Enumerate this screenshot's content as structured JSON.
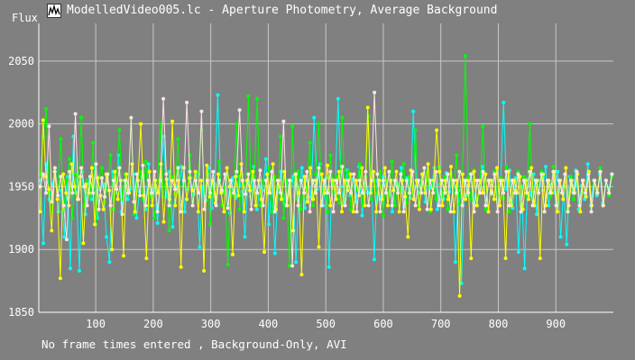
{
  "window": {
    "title": "ModelledVideo005.lc - Aperture Photometry, Average Background",
    "icon": "lightcurve-app-icon"
  },
  "status": {
    "text": "No frame times entered , Background-Only, AVI"
  },
  "chart_data": {
    "type": "line",
    "title": "ModelledVideo005.lc - Aperture Photometry, Average Background",
    "ylabel": "Flux",
    "xlabel": "",
    "xlim": [
      1,
      1000
    ],
    "ylim": [
      1850,
      2080
    ],
    "xticks": [
      100,
      200,
      300,
      400,
      500,
      600,
      700,
      800,
      900
    ],
    "yticks": [
      1850,
      1900,
      1950,
      2000,
      2050
    ],
    "grid": true,
    "legend": "none",
    "markers": "dots",
    "background": "#808080",
    "gridColor": "#c8c8c8",
    "series": [
      {
        "color": "#00ffff",
        "values": [
          1955,
          1905,
          1968,
          1940,
          1952,
          1962,
          1930,
          1947,
          1910,
          1958,
          1885,
          1990,
          1945,
          1883,
          1962,
          1928,
          1955,
          1940,
          1965,
          1925,
          1948,
          1952,
          1910,
          1890,
          1962,
          1945,
          1975,
          1930,
          1955,
          1940,
          1948,
          1960,
          1925,
          1946,
          1958,
          1932,
          1968,
          1944,
          1950,
          1921,
          1955,
          1990,
          1942,
          1962,
          1918,
          1950,
          1946,
          1966,
          1930,
          1948,
          1957,
          1944,
          1961,
          1902,
          1950,
          1939,
          1965,
          1933,
          1952,
          2023,
          1947,
          1945,
          1960,
          1929,
          1957,
          1941,
          1958,
          1946,
          1910,
          1954,
          1942,
          1966,
          1932,
          1950,
          1947,
          1972,
          1920,
          1955,
          1897,
          1946,
          1962,
          1937,
          1955,
          1943,
          1958,
          1890,
          1950,
          1965,
          1933,
          1955,
          1942,
          2005,
          1948,
          1968,
          1935,
          1957,
          1886,
          1956,
          1944,
          2020,
          1950,
          1935,
          1963,
          1943,
          1956,
          1938,
          1966,
          1927,
          1952,
          1945,
          1960,
          1892,
          1955,
          1940,
          1958,
          1945,
          1962,
          1930,
          1953,
          1947,
          1965,
          1934,
          1957,
          1941,
          2010,
          1950,
          1945,
          1960,
          1938,
          1955,
          1949,
          1965,
          1932,
          1952,
          1940,
          1961,
          1946,
          1955,
          1890,
          1947,
          1873,
          1955,
          1943,
          1960,
          1937,
          1950,
          1948,
          1966,
          1935,
          1955,
          1944,
          1962,
          1940,
          1952,
          2017,
          1948,
          1963,
          1933,
          1957,
          1898,
          1950,
          1885,
          1956,
          1943,
          1960,
          1928,
          1955,
          1947,
          1966,
          1935,
          1952,
          1945,
          1962,
          1910,
          1950,
          1904,
          1958,
          1946,
          1963,
          1932,
          1951,
          1940,
          1968,
          1935,
          1955,
          1943,
          1960,
          1937,
          1955,
          1948,
          1960
        ]
      },
      {
        "color": "#00ff00",
        "values": [
          1960,
          1990,
          2012,
          1945,
          1930,
          1965,
          1948,
          1988,
          1932,
          1955,
          1972,
          1925,
          1960,
          1950,
          2005,
          1935,
          1955,
          1942,
          1985,
          1920,
          1958,
          1965,
          1938,
          1952,
          1975,
          1932,
          1955,
          1995,
          1940,
          1960,
          1947,
          2005,
          1928,
          1955,
          1962,
          1940,
          1970,
          1935,
          1950,
          1925,
          1955,
          2000,
          1942,
          1962,
          1915,
          1958,
          1944,
          1988,
          1930,
          1955,
          1940,
          1975,
          1938,
          1950,
          1960,
          1995,
          1945,
          1962,
          1920,
          1955,
          1940,
          1970,
          1935,
          1950,
          1888,
          1955,
          1943,
          2000,
          1932,
          1960,
          1948,
          2022,
          1940,
          1958,
          2020,
          1935,
          1955,
          1945,
          1965,
          1930,
          1958,
          1942,
          1990,
          1925,
          1955,
          1887,
          1998,
          1940,
          1962,
          1932,
          1955,
          1948,
          1985,
          1935,
          1960,
          2000,
          1944,
          1955,
          1930,
          1975,
          1945,
          1958,
          1937,
          2005,
          1940,
          1962,
          1932,
          1955,
          1948,
          1968,
          1935,
          1958,
          2006,
          1940,
          1955,
          1945,
          1962,
          1927,
          1955,
          1943,
          1970,
          1935,
          1952,
          1947,
          1968,
          1937,
          1958,
          1944,
          1995,
          1935,
          1955,
          1946,
          1962,
          1930,
          1955,
          1940,
          1966,
          1942,
          1958,
          1932,
          1960,
          1945,
          1975,
          1936,
          1955,
          2054,
          1957,
          1940,
          1963,
          1935,
          1950,
          1998,
          1932,
          1955,
          1945,
          1962,
          1938,
          1957,
          1941,
          1966,
          1930,
          1955,
          1946,
          1962,
          1935,
          1958,
          1943,
          2000,
          1935,
          1955,
          1948,
          1962,
          1930,
          1955,
          1942,
          1966,
          1937,
          1955,
          1945,
          1960,
          1932,
          1958,
          1940,
          1962,
          1935,
          1955,
          1945,
          1960,
          1930,
          1952,
          1945,
          1965,
          1935,
          1955,
          1943,
          1958
        ]
      },
      {
        "color": "#ffff00",
        "values": [
          1930,
          2003,
          1958,
          1948,
          1915,
          1962,
          1940,
          1877,
          1960,
          1945,
          1935,
          1968,
          1950,
          1940,
          1958,
          1905,
          1952,
          1945,
          1965,
          1920,
          1957,
          1943,
          1932,
          1960,
          1947,
          1900,
          1962,
          1940,
          1955,
          1895,
          1960,
          1945,
          1968,
          1930,
          1955,
          2000,
          1943,
          1893,
          1962,
          1935,
          1955,
          1945,
          1968,
          1922,
          1956,
          1940,
          2002,
          1935,
          1955,
          1886,
          1965,
          1940,
          1957,
          1947,
          1962,
          1930,
          1955,
          1883,
          1967,
          1942,
          1955,
          1937,
          1960,
          1945,
          1930,
          1965,
          1950,
          1896,
          1958,
          1943,
          1968,
          1930,
          1955,
          1947,
          1962,
          1935,
          1955,
          1940,
          1898,
          1960,
          1945,
          1968,
          1932,
          1955,
          1940,
          1962,
          1935,
          1955,
          1915,
          1960,
          1945,
          1880,
          1958,
          1938,
          1965,
          1940,
          1955,
          1902,
          1960,
          1945,
          1967,
          1935,
          1955,
          1940,
          1962,
          1930,
          1955,
          1947,
          1960,
          1930,
          1955,
          1943,
          1965,
          1935,
          2013,
          1945,
          1962,
          1930,
          1955,
          1940,
          1965,
          1935,
          1955,
          1947,
          1962,
          1930,
          1955,
          1942,
          1910,
          1963,
          1940,
          1955,
          1932,
          1960,
          1945,
          1968,
          1932,
          1955,
          1995,
          1962,
          1935,
          1955,
          1940,
          1966,
          1930,
          1955,
          1863,
          1960,
          1940,
          1955,
          1893,
          1962,
          1935,
          1955,
          1945,
          1960,
          1930,
          1955,
          1940,
          1965,
          1935,
          1955,
          1893,
          1962,
          1935,
          1955,
          1945,
          1958,
          1932,
          1955,
          1940,
          1965,
          1935,
          1955,
          1893,
          1960,
          1935,
          1955,
          1945,
          1962,
          1930,
          1955,
          1940,
          1965,
          1935,
          1955,
          1945,
          1960,
          1930,
          1955,
          1942,
          1962,
          1935,
          1955,
          1945,
          1962,
          1935,
          1955,
          1945,
          1960
        ]
      },
      {
        "color": "#ffe4e1",
        "values": [
          1950,
          1960,
          1945,
          1998,
          1938,
          1965,
          1943,
          1958,
          1935,
          1908,
          1962,
          1945,
          2008,
          1940,
          1965,
          1950,
          1935,
          1958,
          1945,
          1968,
          1932,
          1957,
          1942,
          1960,
          1935,
          1955,
          1948,
          1965,
          1928,
          1955,
          1945,
          2005,
          1938,
          1960,
          1943,
          1967,
          1935,
          1955,
          1945,
          1962,
          1930,
          1955,
          2020,
          1960,
          1935,
          1955,
          1948,
          1965,
          1930,
          1955,
          2017,
          1962,
          1935,
          1955,
          1945,
          2010,
          1932,
          1955,
          1945,
          1962,
          1935,
          1955,
          1947,
          1960,
          1933,
          1955,
          1945,
          1962,
          2011,
          1955,
          1944,
          1960,
          1932,
          1955,
          1945,
          1963,
          1935,
          1955,
          1945,
          1962,
          1930,
          1955,
          1945,
          2002,
          1935,
          1955,
          1887,
          1960,
          1935,
          1955,
          1945,
          1962,
          1930,
          1955,
          1945,
          1965,
          1935,
          1955,
          1945,
          1962,
          1930,
          1955,
          1945,
          1966,
          1935,
          1955,
          1945,
          1960,
          1930,
          1955,
          1945,
          1962,
          1935,
          1955,
          2025,
          1960,
          1930,
          1955,
          1945,
          1962,
          1935,
          1955,
          1945,
          1960,
          1930,
          1955,
          1945,
          1962,
          1935,
          1955,
          1945,
          1965,
          1932,
          1955,
          1945,
          1962,
          1935,
          1955,
          1945,
          1960,
          1930,
          1955,
          1945,
          1962,
          1935,
          1955,
          1945,
          1960,
          1930,
          1955,
          1945,
          1962,
          1935,
          1955,
          1945,
          1960,
          1930,
          1955,
          1945,
          1962,
          1935,
          1955,
          1945,
          1960,
          1930,
          1955,
          1945,
          1962,
          1935,
          1955,
          1945,
          1960,
          1930,
          1955,
          1945,
          1962,
          1935,
          1955,
          1945,
          1960,
          1930,
          1955,
          1945,
          1962,
          1935,
          1955,
          1945,
          1960,
          1930,
          1955,
          1945,
          1962,
          1935,
          1955,
          1945,
          1960
        ]
      }
    ]
  }
}
